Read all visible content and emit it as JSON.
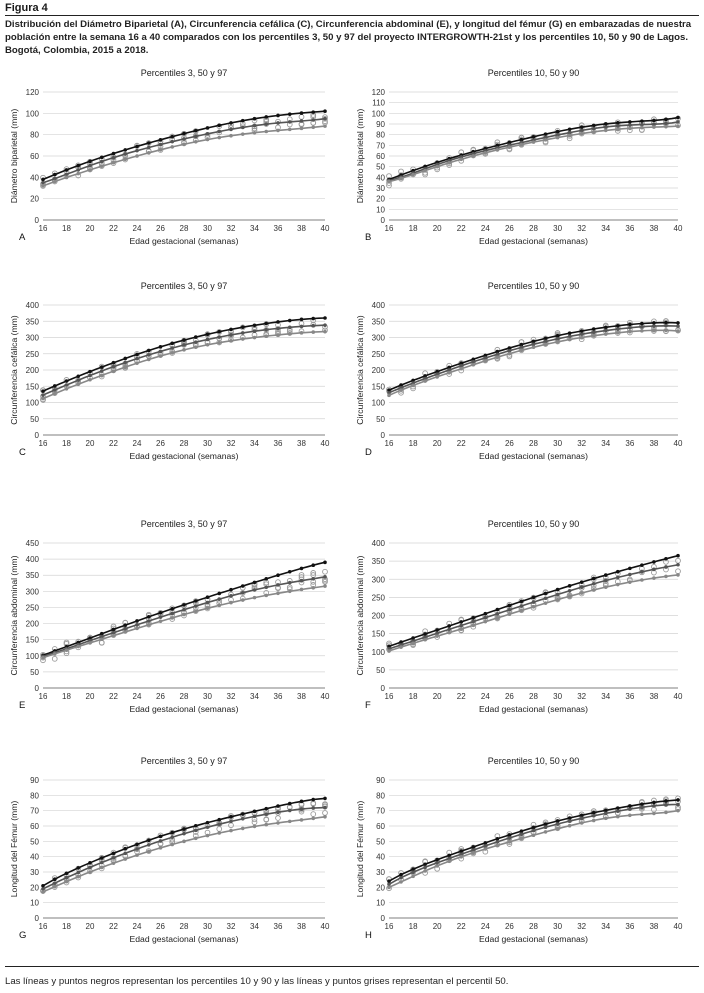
{
  "figure": {
    "label": "Figura 4",
    "caption": "Distribución del Diámetro Biparietal (A), Circunferencia cefálica (C), Circunferencia abdominal (E), y longitud del fémur (G) en embarazadas de nuestra población entre la semana 16 a 40 comparados con los percentiles 3, 50 y 97 del proyecto INTERGROWTH-21st y los percentiles 10, 50 y 90 de Lagos. Bogotá, Colombia, 2015 a 2018.",
    "footnote": "Las líneas y puntos negros representan los percentiles 10 y 90 y las líneas y puntos grises representan el percentil 50."
  },
  "chart_data": [
    {
      "panel": "A",
      "type": "scatter",
      "title": "Percentiles 3, 50 y 97",
      "xlabel": "Edad gestacional (semanas)",
      "ylabel": "Diámetro biparietal (mm)",
      "xlim": [
        16,
        40
      ],
      "ylim": [
        0,
        120
      ],
      "xticks": [
        16,
        18,
        20,
        22,
        24,
        26,
        28,
        30,
        32,
        34,
        36,
        38,
        40
      ],
      "yticks": [
        0,
        20,
        40,
        60,
        80,
        100,
        120
      ],
      "x": [
        16,
        20,
        24,
        28,
        32,
        36,
        40
      ],
      "series": [
        {
          "color": "#111111",
          "values": [
            38,
            55,
            69,
            81,
            91,
            98,
            102
          ]
        },
        {
          "color": "#555555",
          "values": [
            35,
            51,
            65,
            76,
            85,
            91,
            95
          ]
        },
        {
          "color": "#888888",
          "values": [
            32,
            47,
            60,
            71,
            79,
            84,
            88
          ]
        }
      ]
    },
    {
      "panel": "B",
      "type": "scatter",
      "title": "Percentiles 10, 50 y 90",
      "xlabel": "Edad gestacional (semanas)",
      "ylabel": "Diámetro biparietal (mm)",
      "xlim": [
        16,
        40
      ],
      "ylim": [
        0,
        120
      ],
      "xticks": [
        16,
        18,
        20,
        22,
        24,
        26,
        28,
        30,
        32,
        34,
        36,
        38,
        40
      ],
      "yticks": [
        0,
        10,
        20,
        30,
        40,
        50,
        60,
        70,
        80,
        90,
        100,
        110,
        120
      ],
      "x": [
        16,
        20,
        24,
        28,
        32,
        36,
        40
      ],
      "series": [
        {
          "color": "#111111",
          "values": [
            38,
            54,
            67,
            78,
            87,
            92,
            96
          ]
        },
        {
          "color": "#555555",
          "values": [
            37,
            52,
            65,
            75,
            84,
            89,
            92
          ]
        },
        {
          "color": "#888888",
          "values": [
            36,
            50,
            63,
            73,
            81,
            86,
            88
          ]
        }
      ]
    },
    {
      "panel": "C",
      "type": "scatter",
      "title": "Percentiles 3, 50 y 97",
      "xlabel": "Edad gestacional (semanas)",
      "ylabel": "Circunferencia cefálica (mm)",
      "xlim": [
        16,
        40
      ],
      "ylim": [
        0,
        400
      ],
      "xticks": [
        16,
        18,
        20,
        22,
        24,
        26,
        28,
        30,
        32,
        34,
        36,
        38,
        40
      ],
      "yticks": [
        0,
        50,
        100,
        150,
        200,
        250,
        300,
        350,
        400
      ],
      "x": [
        16,
        20,
        24,
        28,
        32,
        36,
        40
      ],
      "series": [
        {
          "color": "#111111",
          "values": [
            135,
            195,
            248,
            292,
            325,
            348,
            360
          ]
        },
        {
          "color": "#555555",
          "values": [
            123,
            183,
            235,
            277,
            308,
            328,
            338
          ]
        },
        {
          "color": "#888888",
          "values": [
            112,
            170,
            221,
            262,
            290,
            308,
            318
          ]
        }
      ]
    },
    {
      "panel": "D",
      "type": "scatter",
      "title": "Percentiles 10, 50 y 90",
      "xlabel": "Edad gestacional (semanas)",
      "ylabel": "Circunferencia cefálica (mm)",
      "xlim": [
        16,
        40
      ],
      "ylim": [
        0,
        400
      ],
      "xticks": [
        16,
        18,
        20,
        22,
        24,
        26,
        28,
        30,
        32,
        34,
        36,
        38,
        40
      ],
      "yticks": [
        0,
        50,
        100,
        150,
        200,
        250,
        300,
        350,
        400
      ],
      "x": [
        16,
        20,
        24,
        28,
        32,
        36,
        40
      ],
      "series": [
        {
          "color": "#111111",
          "values": [
            138,
            195,
            245,
            288,
            320,
            340,
            345
          ]
        },
        {
          "color": "#555555",
          "values": [
            130,
            187,
            237,
            279,
            310,
            330,
            335
          ]
        },
        {
          "color": "#888888",
          "values": [
            122,
            179,
            228,
            270,
            300,
            318,
            320
          ]
        }
      ]
    },
    {
      "panel": "E",
      "type": "scatter",
      "title": "Percentiles 3, 50 y 97",
      "xlabel": "Edad gestacional (semanas)",
      "ylabel": "Circunferencia abdominal (mm)",
      "xlim": [
        16,
        40
      ],
      "ylim": [
        0,
        450
      ],
      "xticks": [
        16,
        18,
        20,
        22,
        24,
        26,
        28,
        30,
        32,
        34,
        36,
        38,
        40
      ],
      "yticks": [
        0,
        50,
        100,
        150,
        200,
        250,
        300,
        350,
        400,
        450
      ],
      "x": [
        16,
        20,
        24,
        28,
        32,
        36,
        40
      ],
      "series": [
        {
          "color": "#111111",
          "values": [
            102,
            155,
            208,
            258,
            305,
            350,
            390
          ]
        },
        {
          "color": "#555555",
          "values": [
            98,
            147,
            196,
            243,
            286,
            320,
            345
          ]
        },
        {
          "color": "#888888",
          "values": [
            94,
            140,
            185,
            228,
            265,
            294,
            316
          ]
        }
      ]
    },
    {
      "panel": "F",
      "type": "scatter",
      "title": "Percentiles 10, 50 y 90",
      "xlabel": "Edad gestacional (semanas)",
      "ylabel": "Circunferencia abdominal (mm)",
      "xlim": [
        16,
        40
      ],
      "ylim": [
        0,
        400
      ],
      "xticks": [
        16,
        18,
        20,
        22,
        24,
        26,
        28,
        30,
        32,
        34,
        36,
        38,
        40
      ],
      "yticks": [
        0,
        50,
        100,
        150,
        200,
        250,
        300,
        350,
        400
      ],
      "x": [
        16,
        20,
        24,
        28,
        32,
        36,
        40
      ],
      "series": [
        {
          "color": "#111111",
          "values": [
            115,
            160,
            205,
            250,
            292,
            330,
            365
          ]
        },
        {
          "color": "#555555",
          "values": [
            108,
            151,
            194,
            237,
            278,
            313,
            340
          ]
        },
        {
          "color": "#888888",
          "values": [
            102,
            143,
            183,
            224,
            262,
            292,
            312
          ]
        }
      ]
    },
    {
      "panel": "G",
      "type": "scatter",
      "title": "Percentiles 3, 50 y 97",
      "xlabel": "Edad gestacional (semanas)",
      "ylabel": "Longitud del Fémur (mm)",
      "xlim": [
        16,
        40
      ],
      "ylim": [
        0,
        90
      ],
      "xticks": [
        16,
        18,
        20,
        22,
        24,
        26,
        28,
        30,
        32,
        34,
        36,
        38,
        40
      ],
      "yticks": [
        0,
        10,
        20,
        30,
        40,
        50,
        60,
        70,
        80,
        90
      ],
      "x": [
        16,
        20,
        24,
        28,
        32,
        36,
        40
      ],
      "series": [
        {
          "color": "#111111",
          "values": [
            21,
            36,
            48,
            58,
            66,
            73,
            78
          ]
        },
        {
          "color": "#555555",
          "values": [
            19,
            33,
            45,
            55,
            63,
            69,
            72
          ]
        },
        {
          "color": "#888888",
          "values": [
            17,
            30,
            41,
            50,
            57,
            62,
            66
          ]
        }
      ]
    },
    {
      "panel": "H",
      "type": "scatter",
      "title": "Percentiles 10, 50 y 90",
      "xlabel": "Edad gestacional (semanas)",
      "ylabel": "Longitud del Fémur (mm)",
      "xlim": [
        16,
        40
      ],
      "ylim": [
        0,
        90
      ],
      "xticks": [
        16,
        18,
        20,
        22,
        24,
        26,
        28,
        30,
        32,
        34,
        36,
        38,
        40
      ],
      "yticks": [
        0,
        10,
        20,
        30,
        40,
        50,
        60,
        70,
        80,
        90
      ],
      "x": [
        16,
        20,
        24,
        28,
        32,
        36,
        40
      ],
      "series": [
        {
          "color": "#111111",
          "values": [
            24,
            38,
            49,
            59,
            67,
            73,
            77
          ]
        },
        {
          "color": "#555555",
          "values": [
            22,
            36,
            47,
            57,
            65,
            71,
            74
          ]
        },
        {
          "color": "#888888",
          "values": [
            20,
            34,
            45,
            54,
            62,
            67,
            70
          ]
        }
      ]
    }
  ]
}
